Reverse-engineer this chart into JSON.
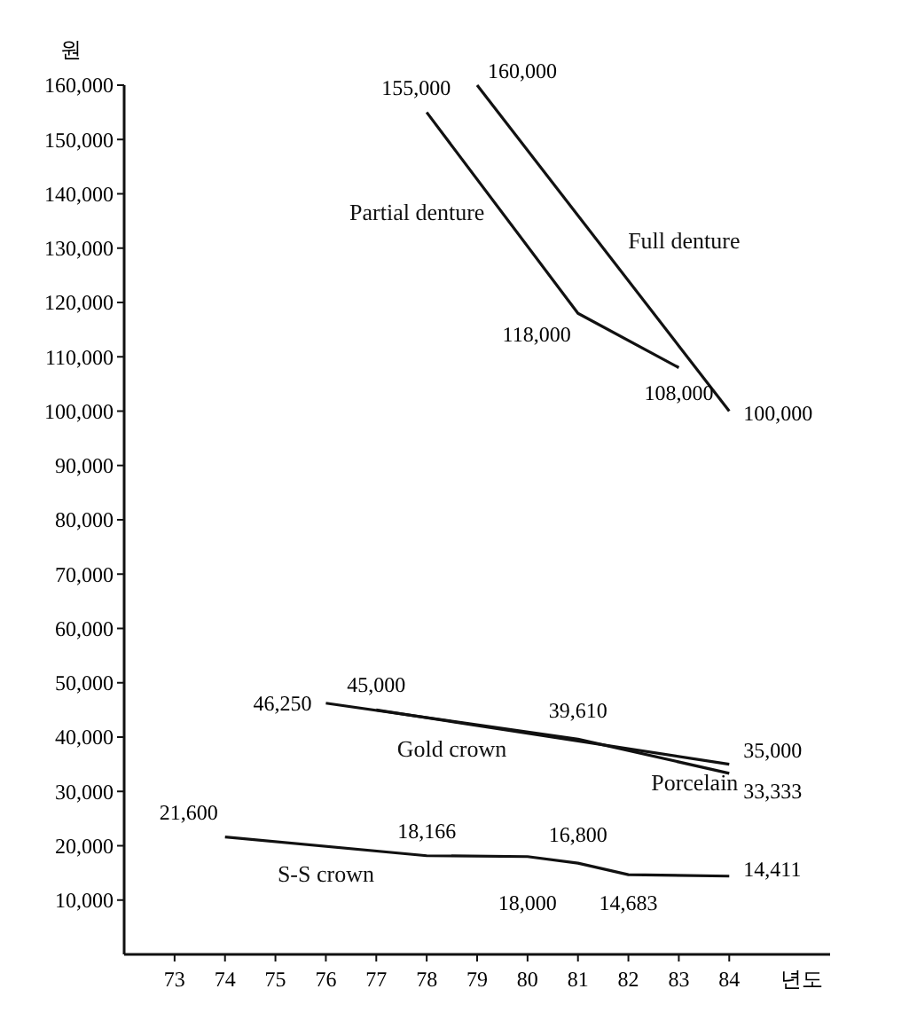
{
  "chart_data": {
    "type": "line",
    "xlabel": "년도",
    "ylabel": "원",
    "xlim": [
      72,
      86
    ],
    "xticks": [
      73,
      74,
      75,
      76,
      77,
      78,
      79,
      80,
      81,
      82,
      83,
      84
    ],
    "ylim": [
      0,
      160000
    ],
    "yticks": [
      {
        "value": 10000,
        "label": "10,000"
      },
      {
        "value": 20000,
        "label": "20,000"
      },
      {
        "value": 30000,
        "label": "30,000"
      },
      {
        "value": 40000,
        "label": "40,000"
      },
      {
        "value": 50000,
        "label": "50,000"
      },
      {
        "value": 60000,
        "label": "60,000"
      },
      {
        "value": 70000,
        "label": "70,000"
      },
      {
        "value": 80000,
        "label": "80,000"
      },
      {
        "value": 90000,
        "label": "90,000"
      },
      {
        "value": 100000,
        "label": "100,000"
      },
      {
        "value": 110000,
        "label": "110,000"
      },
      {
        "value": 120000,
        "label": "120,000"
      },
      {
        "value": 130000,
        "label": "130,000"
      },
      {
        "value": 140000,
        "label": "140,000"
      },
      {
        "value": 150000,
        "label": "150,000"
      },
      {
        "value": 160000,
        "label": "160,000"
      }
    ],
    "grid": false,
    "legend": false,
    "marker": "none",
    "line_style": "solid",
    "series": [
      {
        "name": "Full denture",
        "color": "#111111",
        "x": [
          79,
          84
        ],
        "values": [
          160000,
          100000
        ],
        "value_labels": [
          "160,000",
          "100,000"
        ]
      },
      {
        "name": "Partial denture",
        "color": "#111111",
        "x": [
          78,
          81,
          83
        ],
        "values": [
          155000,
          118000,
          108000
        ],
        "value_labels": [
          "155,000",
          "118,000",
          "108,000"
        ]
      },
      {
        "name": "Gold crown",
        "color": "#111111",
        "x": [
          76,
          81,
          84
        ],
        "values": [
          46250,
          39610,
          33333
        ],
        "value_labels": [
          "46,250",
          "39,610",
          "33,333"
        ]
      },
      {
        "name": "Porcelain",
        "color": "#111111",
        "x": [
          77,
          84
        ],
        "values": [
          45000,
          35000
        ],
        "value_labels": [
          "45,000",
          "35,000"
        ]
      },
      {
        "name": "S-S crown",
        "color": "#111111",
        "x": [
          74,
          78,
          80,
          81,
          82,
          84
        ],
        "values": [
          21600,
          18166,
          18000,
          16800,
          14683,
          14411
        ],
        "value_labels": [
          "21,600",
          "18,166",
          "18,000",
          "16,800",
          "14,683",
          "14,411"
        ]
      }
    ]
  }
}
